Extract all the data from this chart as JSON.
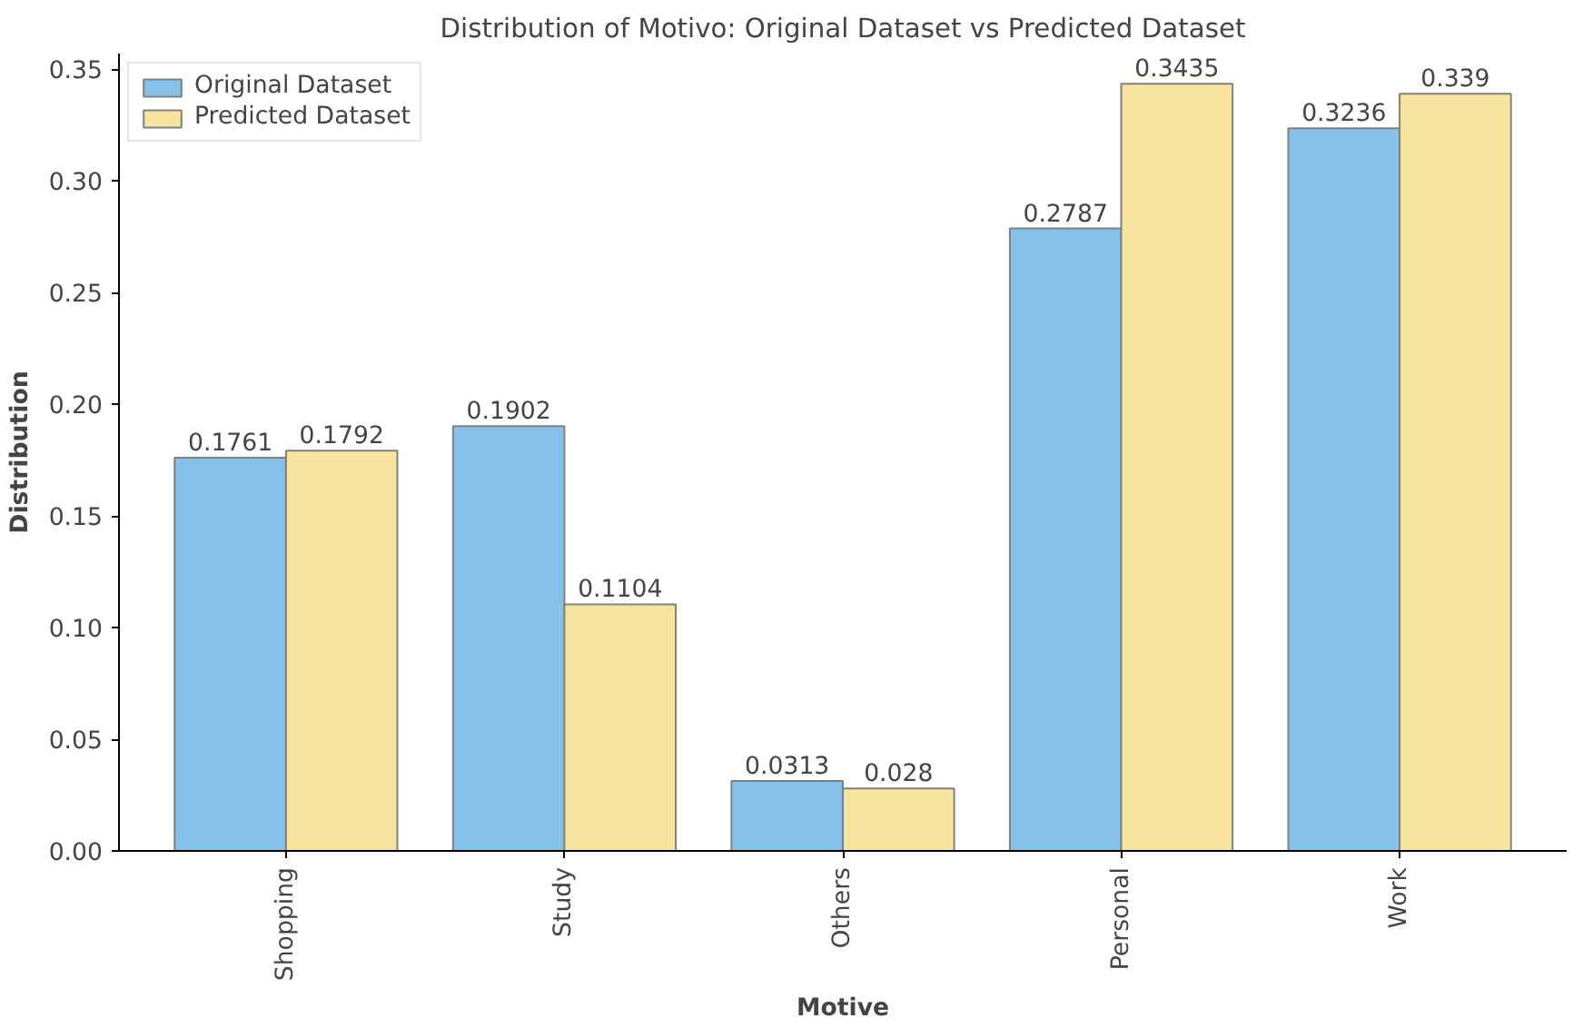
{
  "chart_data": {
    "type": "bar",
    "title": "Distribution of Motivo: Original Dataset vs Predicted Dataset",
    "xlabel": "Motive",
    "ylabel": "Distribution",
    "categories": [
      "Shopping",
      "Study",
      "Others",
      "Personal",
      "Work"
    ],
    "series": [
      {
        "name": "Original Dataset",
        "color": "#85c1e9",
        "values": [
          0.1761,
          0.1902,
          0.0313,
          0.2787,
          0.3236
        ]
      },
      {
        "name": "Predicted Dataset",
        "color": "#f7e59f",
        "values": [
          0.1792,
          0.1104,
          0.028,
          0.3435,
          0.339
        ]
      }
    ],
    "ylim": [
      0,
      0.357
    ],
    "yticks": [
      {
        "value": 0,
        "label": "0.00"
      },
      {
        "value": 0.05,
        "label": "0.05"
      },
      {
        "value": 0.1,
        "label": "0.10"
      },
      {
        "value": 0.15,
        "label": "0.15"
      },
      {
        "value": 0.2,
        "label": "0.20"
      },
      {
        "value": 0.25,
        "label": "0.25"
      },
      {
        "value": 0.3,
        "label": "0.30"
      },
      {
        "value": 0.35,
        "label": "0.35"
      }
    ],
    "data_labels": true,
    "legend": "top left",
    "grid": false
  }
}
